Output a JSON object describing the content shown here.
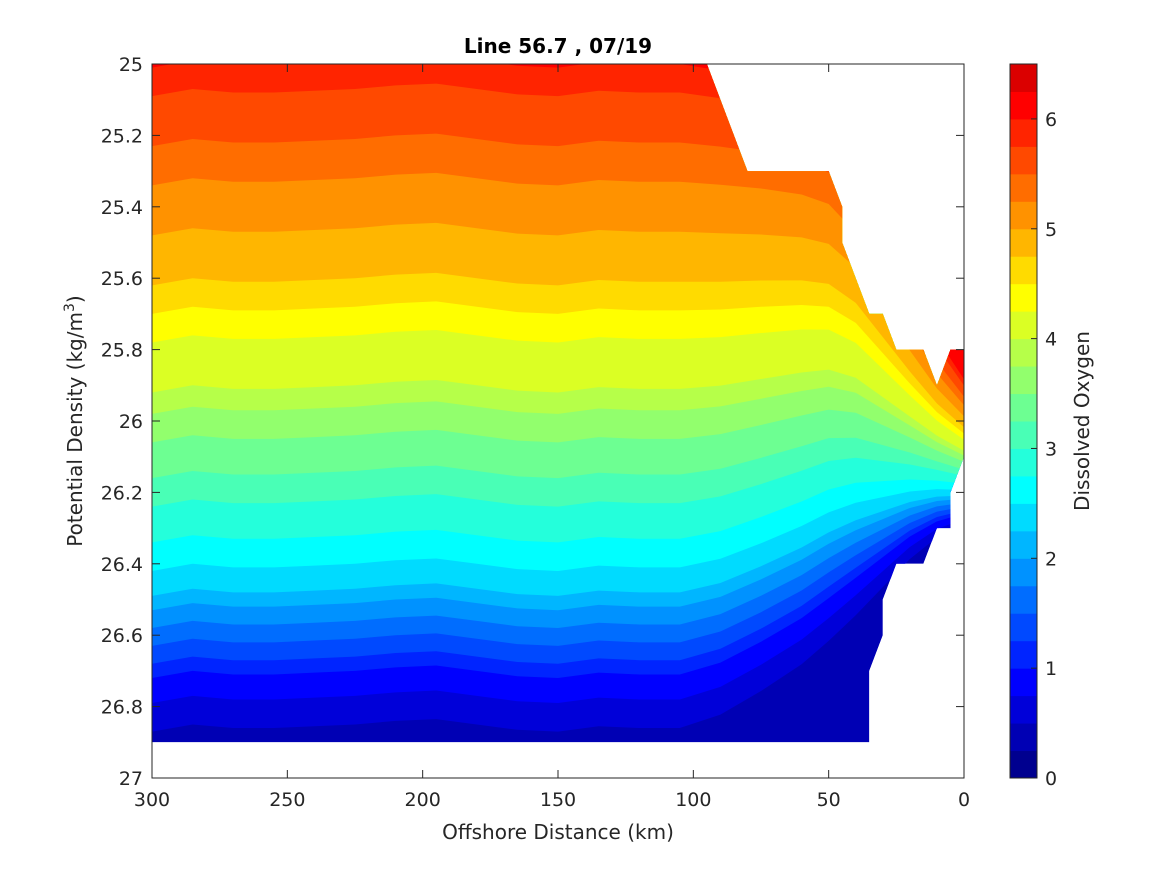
{
  "chart_data": {
    "type": "contourf",
    "title": "Line 56.7 , 07/19",
    "xlabel": "Offshore Distance (km)",
    "ylabel_main": "Potential Density (kg/m",
    "ylabel_sup": "3",
    "ylabel_close": ")",
    "colorbar_label": "Dissolved Oxygen",
    "xlim": [
      300,
      0
    ],
    "x_reversed": true,
    "ylim": [
      25,
      27
    ],
    "y_reversed": true,
    "xticks": [
      300,
      250,
      200,
      150,
      100,
      50,
      0
    ],
    "xtick_labels": [
      "300",
      "250",
      "200",
      "150",
      "100",
      "50",
      "0"
    ],
    "yticks": [
      25,
      25.2,
      25.4,
      25.6,
      25.8,
      26,
      26.2,
      26.4,
      26.6,
      26.8,
      27
    ],
    "ytick_labels": [
      "25",
      "25.2",
      "25.4",
      "25.6",
      "25.8",
      "26",
      "26.2",
      "26.4",
      "26.6",
      "26.8",
      "27"
    ],
    "colorbar": {
      "clim": [
        0,
        6.5
      ],
      "levels": [
        0,
        0.25,
        0.5,
        0.75,
        1,
        1.25,
        1.5,
        1.75,
        2,
        2.25,
        2.5,
        2.75,
        3,
        3.25,
        3.5,
        3.75,
        4,
        4.25,
        4.5,
        4.75,
        5,
        5.25,
        5.5,
        5.75,
        6,
        6.25,
        6.5
      ],
      "ticks": [
        0,
        1,
        2,
        3,
        4,
        5,
        6
      ],
      "tick_labels": [
        "0",
        "1",
        "2",
        "3",
        "4",
        "5",
        "6"
      ],
      "colors": [
        "#00008f",
        "#0000b4",
        "#0000d9",
        "#0000ff",
        "#0024ff",
        "#0049ff",
        "#006dff",
        "#0092ff",
        "#00b6ff",
        "#00dbff",
        "#00ffff",
        "#24ffdb",
        "#49ffb6",
        "#6dff92",
        "#92ff6d",
        "#b6ff49",
        "#dbff24",
        "#ffff00",
        "#ffdb00",
        "#ffb600",
        "#ff9200",
        "#ff6d00",
        "#ff4900",
        "#ff2400",
        "#ff0000",
        "#db0000",
        "#b60000"
      ]
    },
    "data_region": {
      "bottom_boundary": [
        [
          300,
          26.9
        ],
        [
          35,
          26.9
        ],
        [
          35,
          26.7
        ],
        [
          30,
          26.6
        ],
        [
          30,
          26.5
        ],
        [
          25,
          26.4
        ],
        [
          15,
          26.4
        ],
        [
          10,
          26.3
        ],
        [
          5,
          26.3
        ],
        [
          5,
          26.2
        ],
        [
          0,
          26.1
        ],
        [
          0,
          25.8
        ]
      ],
      "top_boundary": [
        [
          300,
          25
        ],
        [
          95,
          25
        ],
        [
          80,
          25.3
        ],
        [
          50,
          25.3
        ],
        [
          45,
          25.4
        ],
        [
          45,
          25.5
        ],
        [
          35,
          25.7
        ],
        [
          30,
          25.7
        ],
        [
          25,
          25.8
        ],
        [
          15,
          25.8
        ],
        [
          10,
          25.9
        ],
        [
          5,
          25.8
        ],
        [
          0,
          25.8
        ]
      ]
    },
    "contour_profiles": {
      "x": [
        300,
        285,
        270,
        255,
        240,
        225,
        210,
        195,
        180,
        165,
        150,
        135,
        120,
        105,
        90,
        75,
        60,
        50,
        40,
        30,
        20,
        10,
        0
      ],
      "reference_x": 300,
      "reference_levels": [
        {
          "oxygen": 6.0,
          "density": 25.01
        },
        {
          "oxygen": 5.75,
          "density": 25.09
        },
        {
          "oxygen": 5.5,
          "density": 25.23
        },
        {
          "oxygen": 5.25,
          "density": 25.34
        },
        {
          "oxygen": 5.0,
          "density": 25.48
        },
        {
          "oxygen": 4.75,
          "density": 25.62
        },
        {
          "oxygen": 4.5,
          "density": 25.7
        },
        {
          "oxygen": 4.25,
          "density": 25.78
        },
        {
          "oxygen": 4.0,
          "density": 25.92
        },
        {
          "oxygen": 3.75,
          "density": 25.98
        },
        {
          "oxygen": 3.5,
          "density": 26.06
        },
        {
          "oxygen": 3.25,
          "density": 26.16
        },
        {
          "oxygen": 3.0,
          "density": 26.24
        },
        {
          "oxygen": 2.75,
          "density": 26.34
        },
        {
          "oxygen": 2.5,
          "density": 26.42
        },
        {
          "oxygen": 2.25,
          "density": 26.49
        },
        {
          "oxygen": 2.0,
          "density": 26.53
        },
        {
          "oxygen": 1.75,
          "density": 26.58
        },
        {
          "oxygen": 1.5,
          "density": 26.63
        },
        {
          "oxygen": 1.25,
          "density": 26.68
        },
        {
          "oxygen": 1.0,
          "density": 26.72
        },
        {
          "oxygen": 0.75,
          "density": 26.79
        },
        {
          "oxygen": 0.5,
          "density": 26.87
        }
      ],
      "shift": [
        0,
        -0.02,
        -0.01,
        -0.01,
        -0.015,
        -0.02,
        -0.03,
        -0.035,
        -0.02,
        -0.005,
        0.0,
        -0.015,
        -0.01,
        -0.01,
        -0.02,
        -0.04,
        -0.06,
        -0.07,
        -0.05,
        0.0,
        0.05,
        0.1,
        0.14
      ],
      "compress": [
        1.0,
        1.0,
        1.0,
        1.0,
        1.0,
        1.0,
        1.0,
        1.0,
        1.0,
        1.0,
        1.0,
        1.0,
        1.0,
        1.0,
        0.97,
        0.92,
        0.86,
        0.8,
        0.7,
        0.56,
        0.42,
        0.3,
        0.22
      ]
    }
  }
}
